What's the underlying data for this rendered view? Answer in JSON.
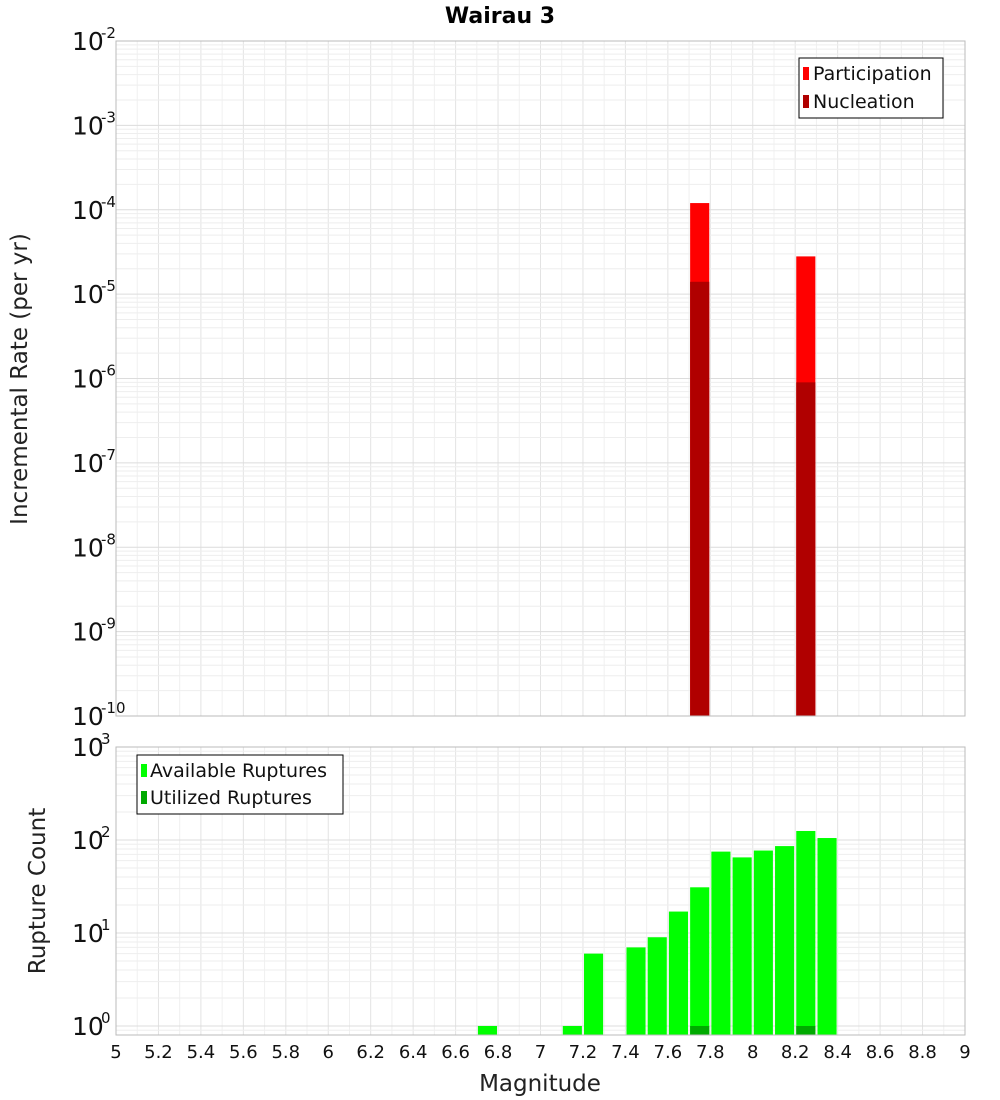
{
  "chart_data": [
    {
      "type": "bar",
      "title": "Wairau 3",
      "ylabel": "Incremental Rate (per yr)",
      "xlabel": "",
      "xlim": [
        5,
        9
      ],
      "ylim": [
        1e-10,
        0.01
      ],
      "yscale": "log",
      "grid": true,
      "legend_position": "top-right",
      "y_ticks": [
        {
          "base": "10",
          "exp": "-10",
          "value": 1e-10
        },
        {
          "base": "10",
          "exp": "-9",
          "value": 1e-09
        },
        {
          "base": "10",
          "exp": "-8",
          "value": 1e-08
        },
        {
          "base": "10",
          "exp": "-7",
          "value": 1e-07
        },
        {
          "base": "10",
          "exp": "-6",
          "value": 1e-06
        },
        {
          "base": "10",
          "exp": "-5",
          "value": 1e-05
        },
        {
          "base": "10",
          "exp": "-4",
          "value": 0.0001
        },
        {
          "base": "10",
          "exp": "-3",
          "value": 0.001
        },
        {
          "base": "10",
          "exp": "-2",
          "value": 0.01
        }
      ],
      "series": [
        {
          "name": "Participation",
          "color": "#ff0000",
          "x": [
            7.75,
            8.25
          ],
          "values": [
            0.00012,
            2.8e-05
          ]
        },
        {
          "name": "Nucleation",
          "color": "#b00000",
          "x": [
            7.75,
            8.25
          ],
          "values": [
            1.4e-05,
            9e-07
          ]
        }
      ]
    },
    {
      "type": "bar",
      "title": "",
      "ylabel": "Rupture Count",
      "xlabel": "Magnitude",
      "xlim": [
        5,
        9
      ],
      "ylim": [
        0.8,
        1000
      ],
      "yscale": "log",
      "grid": true,
      "legend_position": "top-left",
      "x_ticks": [
        "5",
        "5.2",
        "5.4",
        "5.6",
        "5.8",
        "6",
        "6.2",
        "6.4",
        "6.6",
        "6.8",
        "7",
        "7.2",
        "7.4",
        "7.6",
        "7.8",
        "8",
        "8.2",
        "8.4",
        "8.6",
        "8.8",
        "9"
      ],
      "y_ticks": [
        {
          "base": "10",
          "exp": "0",
          "value": 1
        },
        {
          "base": "10",
          "exp": "1",
          "value": 10
        },
        {
          "base": "10",
          "exp": "2",
          "value": 100
        },
        {
          "base": "10",
          "exp": "3",
          "value": 1000
        }
      ],
      "series": [
        {
          "name": "Available Ruptures",
          "color": "#00ff00",
          "x": [
            6.75,
            7.15,
            7.25,
            7.45,
            7.55,
            7.65,
            7.75,
            7.85,
            7.95,
            8.05,
            8.15,
            8.25,
            8.35
          ],
          "values": [
            1,
            1,
            6,
            7,
            9,
            17,
            31,
            75,
            65,
            77,
            86,
            125,
            105
          ]
        },
        {
          "name": "Utilized Ruptures",
          "color": "#00aa00",
          "x": [
            7.75,
            8.25
          ],
          "values": [
            1,
            1
          ]
        }
      ]
    }
  ]
}
